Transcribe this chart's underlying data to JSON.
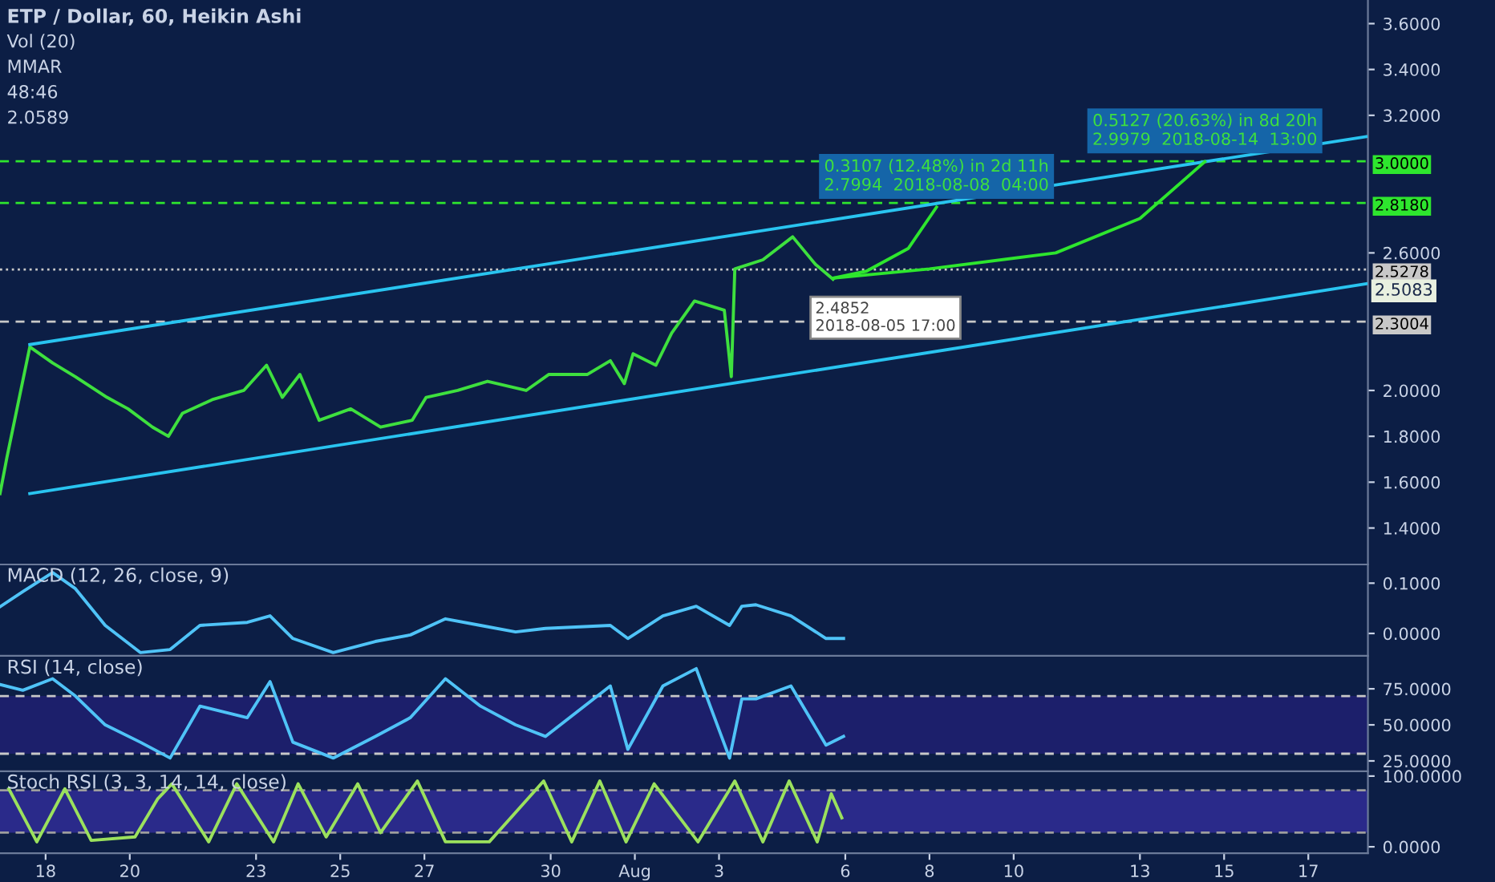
{
  "chart_data": [
    {
      "type": "line",
      "title": "ETP / Dollar, 60, Heikin Ashi",
      "xlim": [
        "2018-07-16T22:00",
        "2018-08-18T10:00"
      ],
      "ylim": [
        1.241,
        3.703
      ],
      "yticks": [
        {
          "value": 1.4,
          "label": "1.4000"
        },
        {
          "value": 1.6,
          "label": "1.6000"
        },
        {
          "value": 1.8,
          "label": "1.8000"
        },
        {
          "value": 2.0,
          "label": "2.0000"
        },
        {
          "value": 2.6,
          "label": "2.6000"
        },
        {
          "value": 3.2,
          "label": "3.2000"
        },
        {
          "value": 3.4,
          "label": "3.4000"
        },
        {
          "value": 3.6,
          "label": "3.6000"
        }
      ],
      "tick_labels": "y",
      "grid": false,
      "legend": false,
      "series": [
        {
          "color": "#3ee03e",
          "x": [
            "2018-07-16T22:00",
            "2018-07-17T02:00",
            "2018-07-17T15:00",
            "2018-07-18T04:00",
            "2018-07-18T17:00",
            "2018-07-19T11:00",
            "2018-07-19T23:00",
            "2018-07-20T13:00",
            "2018-07-20T22:00",
            "2018-07-21T06:00",
            "2018-07-21T23:00",
            "2018-07-22T17:00",
            "2018-07-23T06:00",
            "2018-07-23T15:00",
            "2018-07-24T01:00",
            "2018-07-24T12:00",
            "2018-07-25T06:00",
            "2018-07-25T23:00",
            "2018-07-26T17:00",
            "2018-07-27T01:00",
            "2018-07-27T19:00",
            "2018-07-28T12:00",
            "2018-07-29T10:00",
            "2018-07-29T23:00",
            "2018-07-30T21:00",
            "2018-07-31T10:00",
            "2018-07-31T18:00",
            "2018-07-31T23:00",
            "2018-08-01T12:00",
            "2018-08-01T21:00",
            "2018-08-02T10:00",
            "2018-08-03T03:00",
            "2018-08-03T07:00",
            "2018-08-03T09:00",
            "2018-08-04T01:00",
            "2018-08-04T18:00",
            "2018-08-05T07:00",
            "2018-08-05T17:00"
          ],
          "values": [
            1.55,
            1.71,
            2.19,
            2.12,
            2.06,
            1.97,
            1.92,
            1.84,
            1.8,
            1.9,
            1.96,
            2.0,
            2.11,
            1.97,
            2.07,
            1.87,
            1.92,
            1.84,
            1.87,
            1.97,
            2.0,
            2.04,
            2.0,
            2.07,
            2.07,
            2.13,
            2.03,
            2.16,
            2.11,
            2.25,
            2.39,
            2.35,
            2.06,
            2.53,
            2.57,
            2.67,
            2.55,
            2.4852
          ]
        },
        {
          "color": "#29c4f0",
          "x": [
            "2018-07-17T15:00",
            "2018-08-18T09:00"
          ],
          "values": [
            2.2,
            3.107
          ]
        },
        {
          "color": "#29c4f0",
          "x": [
            "2018-07-17T15:00",
            "2018-08-18T09:00"
          ],
          "values": [
            1.55,
            2.465
          ]
        },
        {
          "color": "#2ee62e",
          "x": [
            "2018-08-05T17:00",
            "2018-08-06T12:00",
            "2018-08-07T12:00",
            "2018-08-08T04:00"
          ],
          "values": [
            2.49,
            2.52,
            2.62,
            2.7994
          ]
        },
        {
          "color": "#2ee62e",
          "x": [
            "2018-08-05T17:00",
            "2018-08-08T00:00",
            "2018-08-11T00:00",
            "2018-08-13T00:00",
            "2018-08-14T13:00"
          ],
          "values": [
            2.49,
            2.53,
            2.6,
            2.75,
            2.9979
          ]
        }
      ],
      "ref_lines": [
        {
          "axis": "y",
          "value": 3.0,
          "label": "3.0000",
          "color": "#2ee62e",
          "line_style": "dashed"
        },
        {
          "axis": "y",
          "value": 2.818,
          "label": "2.8180",
          "color": "#2ee62e",
          "line_style": "dashed"
        },
        {
          "axis": "y",
          "value": 2.5278,
          "label": "2.5278",
          "color": "#c8c8c8",
          "line_style": "dotted"
        },
        {
          "axis": "y",
          "value": 2.3004,
          "label": "2.3004",
          "color": "#c8c8c8",
          "line_style": "dashed"
        }
      ],
      "annotations": [
        "Vol (20)",
        "MMAR",
        "48:46",
        "2.0589",
        {
          "text": "0.3107 (12.48%) in 2d 11h\n2.7994  2018-08-08  04:00",
          "x": "2018-08-08T04:00",
          "y": 2.7994
        },
        {
          "text": "0.5127 (20.63%) in 8d 20h\n2.9979  2018-08-14  13:00",
          "x": "2018-08-14T13:00",
          "y": 2.9979
        },
        {
          "text": "2.4852\n2018-08-05 17:00",
          "x": "2018-08-05T17:00",
          "y": 2.4852
        },
        {
          "text": "2.5083",
          "x": "2018-08-18T10:00",
          "y": 2.5083
        }
      ]
    },
    {
      "type": "line",
      "title": "MACD (12, 26, close, 9)",
      "xlim": [
        "2018-07-16T22:00",
        "2018-08-18T10:00"
      ],
      "ylim": [
        -0.0446,
        0.134
      ],
      "yticks": [
        {
          "value": 0,
          "label": "0.0000"
        },
        {
          "value": 0.1,
          "label": "0.1000"
        }
      ],
      "tick_labels": "y",
      "grid": false,
      "legend": false,
      "series": [
        {
          "color": "#4fc3f7",
          "x": [
            "2018-07-16T22:00",
            "2018-07-17T11:00",
            "2018-07-18T04:00",
            "2018-07-18T17:00",
            "2018-07-19T10:00",
            "2018-07-20T06:00",
            "2018-07-20T23:00",
            "2018-07-21T16:00",
            "2018-07-22T19:00",
            "2018-07-23T08:00",
            "2018-07-23T21:00",
            "2018-07-24T20:00",
            "2018-07-25T20:00",
            "2018-07-26T16:00",
            "2018-07-27T12:00",
            "2018-07-28T08:00",
            "2018-07-29T04:00",
            "2018-07-29T21:00",
            "2018-07-31T10:00",
            "2018-07-31T20:00",
            "2018-08-01T16:00",
            "2018-08-02T11:00",
            "2018-08-03T06:00",
            "2018-08-03T13:00",
            "2018-08-03T21:00",
            "2018-08-04T17:00",
            "2018-08-05T13:00",
            "2018-08-05T23:00"
          ],
          "values": [
            0.053,
            0.083,
            0.121,
            0.089,
            0.016,
            -0.038,
            -0.032,
            0.016,
            0.022,
            0.035,
            -0.01,
            -0.038,
            -0.016,
            -0.003,
            0.029,
            0.016,
            0.003,
            0.01,
            0.016,
            -0.01,
            0.035,
            0.054,
            0.016,
            0.054,
            0.057,
            0.035,
            -0.01,
            -0.01
          ]
        }
      ]
    },
    {
      "type": "line",
      "title": "RSI (14, close)",
      "xlim": [
        "2018-07-16T22:00",
        "2018-08-18T10:00"
      ],
      "ylim": [
        17.8,
        96.7
      ],
      "yticks": [
        {
          "value": 25,
          "label": "25.0000"
        },
        {
          "value": 50,
          "label": "50.0000"
        },
        {
          "value": 75,
          "label": "75.0000"
        }
      ],
      "tick_labels": "y",
      "grid": false,
      "legend": false,
      "bands": [
        {
          "axis": "y",
          "from": 30,
          "to": 70,
          "color": "#1c1f6b"
        }
      ],
      "ref_lines": [
        {
          "axis": "y",
          "value": 70,
          "color": "#c8c8c8",
          "line_style": "dashed"
        },
        {
          "axis": "y",
          "value": 30,
          "color": "#c8c8c8",
          "line_style": "dashed"
        }
      ],
      "series": [
        {
          "color": "#4fc3f7",
          "x": [
            "2018-07-16T22:00",
            "2018-07-17T11:00",
            "2018-07-18T04:00",
            "2018-07-18T17:00",
            "2018-07-19T10:00",
            "2018-07-20T06:00",
            "2018-07-20T23:00",
            "2018-07-21T16:00",
            "2018-07-22T19:00",
            "2018-07-23T08:00",
            "2018-07-23T21:00",
            "2018-07-24T20:00",
            "2018-07-25T20:00",
            "2018-07-26T16:00",
            "2018-07-27T12:00",
            "2018-07-28T08:00",
            "2018-07-29T04:00",
            "2018-07-29T21:00",
            "2018-07-31T10:00",
            "2018-07-31T20:00",
            "2018-08-01T16:00",
            "2018-08-02T11:00",
            "2018-08-03T06:00",
            "2018-08-03T13:00",
            "2018-08-03T21:00",
            "2018-08-04T17:00",
            "2018-08-05T13:00",
            "2018-08-05T23:00"
          ],
          "values": [
            78,
            74,
            82,
            70,
            50,
            38,
            27,
            63,
            55,
            80,
            38,
            27,
            42,
            55,
            82,
            63,
            50,
            42,
            77,
            33,
            77,
            89,
            27,
            68,
            68,
            77,
            36,
            42
          ]
        }
      ]
    },
    {
      "type": "line",
      "title": "Stoch RSI (3, 3, 14, 14, close)",
      "xlim": [
        "2018-07-16T22:00",
        "2018-08-18T10:00"
      ],
      "ylim": [
        -9,
        104.5
      ],
      "xticks": [
        {
          "value": "2018-07-18",
          "label": "18"
        },
        {
          "value": "2018-07-20",
          "label": "20"
        },
        {
          "value": "2018-07-23",
          "label": "23"
        },
        {
          "value": "2018-07-25",
          "label": "25"
        },
        {
          "value": "2018-07-27",
          "label": "27"
        },
        {
          "value": "2018-07-30",
          "label": "30"
        },
        {
          "value": "2018-08-01",
          "label": "Aug"
        },
        {
          "value": "2018-08-03",
          "label": "3"
        },
        {
          "value": "2018-08-06",
          "label": "6"
        },
        {
          "value": "2018-08-08",
          "label": "8"
        },
        {
          "value": "2018-08-10",
          "label": "10"
        },
        {
          "value": "2018-08-13",
          "label": "13"
        },
        {
          "value": "2018-08-15",
          "label": "15"
        },
        {
          "value": "2018-08-17",
          "label": "17"
        }
      ],
      "yticks": [
        {
          "value": 0,
          "label": "0.0000"
        },
        {
          "value": 100,
          "label": "100.0000"
        }
      ],
      "grid": false,
      "legend": false,
      "bands": [
        {
          "axis": "y",
          "from": 20,
          "to": 80,
          "color": "#2a2a8a"
        }
      ],
      "ref_lines": [
        {
          "axis": "y",
          "value": 80,
          "color": "#9e9e9e",
          "line_style": "dashed"
        },
        {
          "axis": "y",
          "value": 20,
          "color": "#9e9e9e",
          "line_style": "dashed"
        }
      ],
      "series": [
        {
          "color": "#9be15d",
          "x": [
            "2018-07-17T03:00",
            "2018-07-17T19:00",
            "2018-07-18T11:00",
            "2018-07-19T02:00",
            "2018-07-20T03:00",
            "2018-07-20T16:00",
            "2018-07-21T00:00",
            "2018-07-21T21:00",
            "2018-07-22T13:00",
            "2018-07-23T10:00",
            "2018-07-24T00:00",
            "2018-07-24T16:00",
            "2018-07-25T10:00",
            "2018-07-25T23:00",
            "2018-07-26T20:00",
            "2018-07-27T12:00",
            "2018-07-28T13:00",
            "2018-07-29T20:00",
            "2018-07-30T12:00",
            "2018-07-31T04:00",
            "2018-07-31T19:00",
            "2018-08-01T11:00",
            "2018-08-02T12:00",
            "2018-08-03T09:00",
            "2018-08-04T01:00",
            "2018-08-04T16:00",
            "2018-08-05T08:00",
            "2018-08-05T16:00",
            "2018-08-05T22:00"
          ],
          "values": [
            82,
            7,
            82,
            9,
            14,
            68,
            89,
            7,
            89,
            7,
            89,
            14,
            89,
            20,
            93,
            7,
            7,
            93,
            7,
            93,
            7,
            89,
            7,
            93,
            7,
            93,
            7,
            75,
            41
          ]
        }
      ]
    }
  ]
}
